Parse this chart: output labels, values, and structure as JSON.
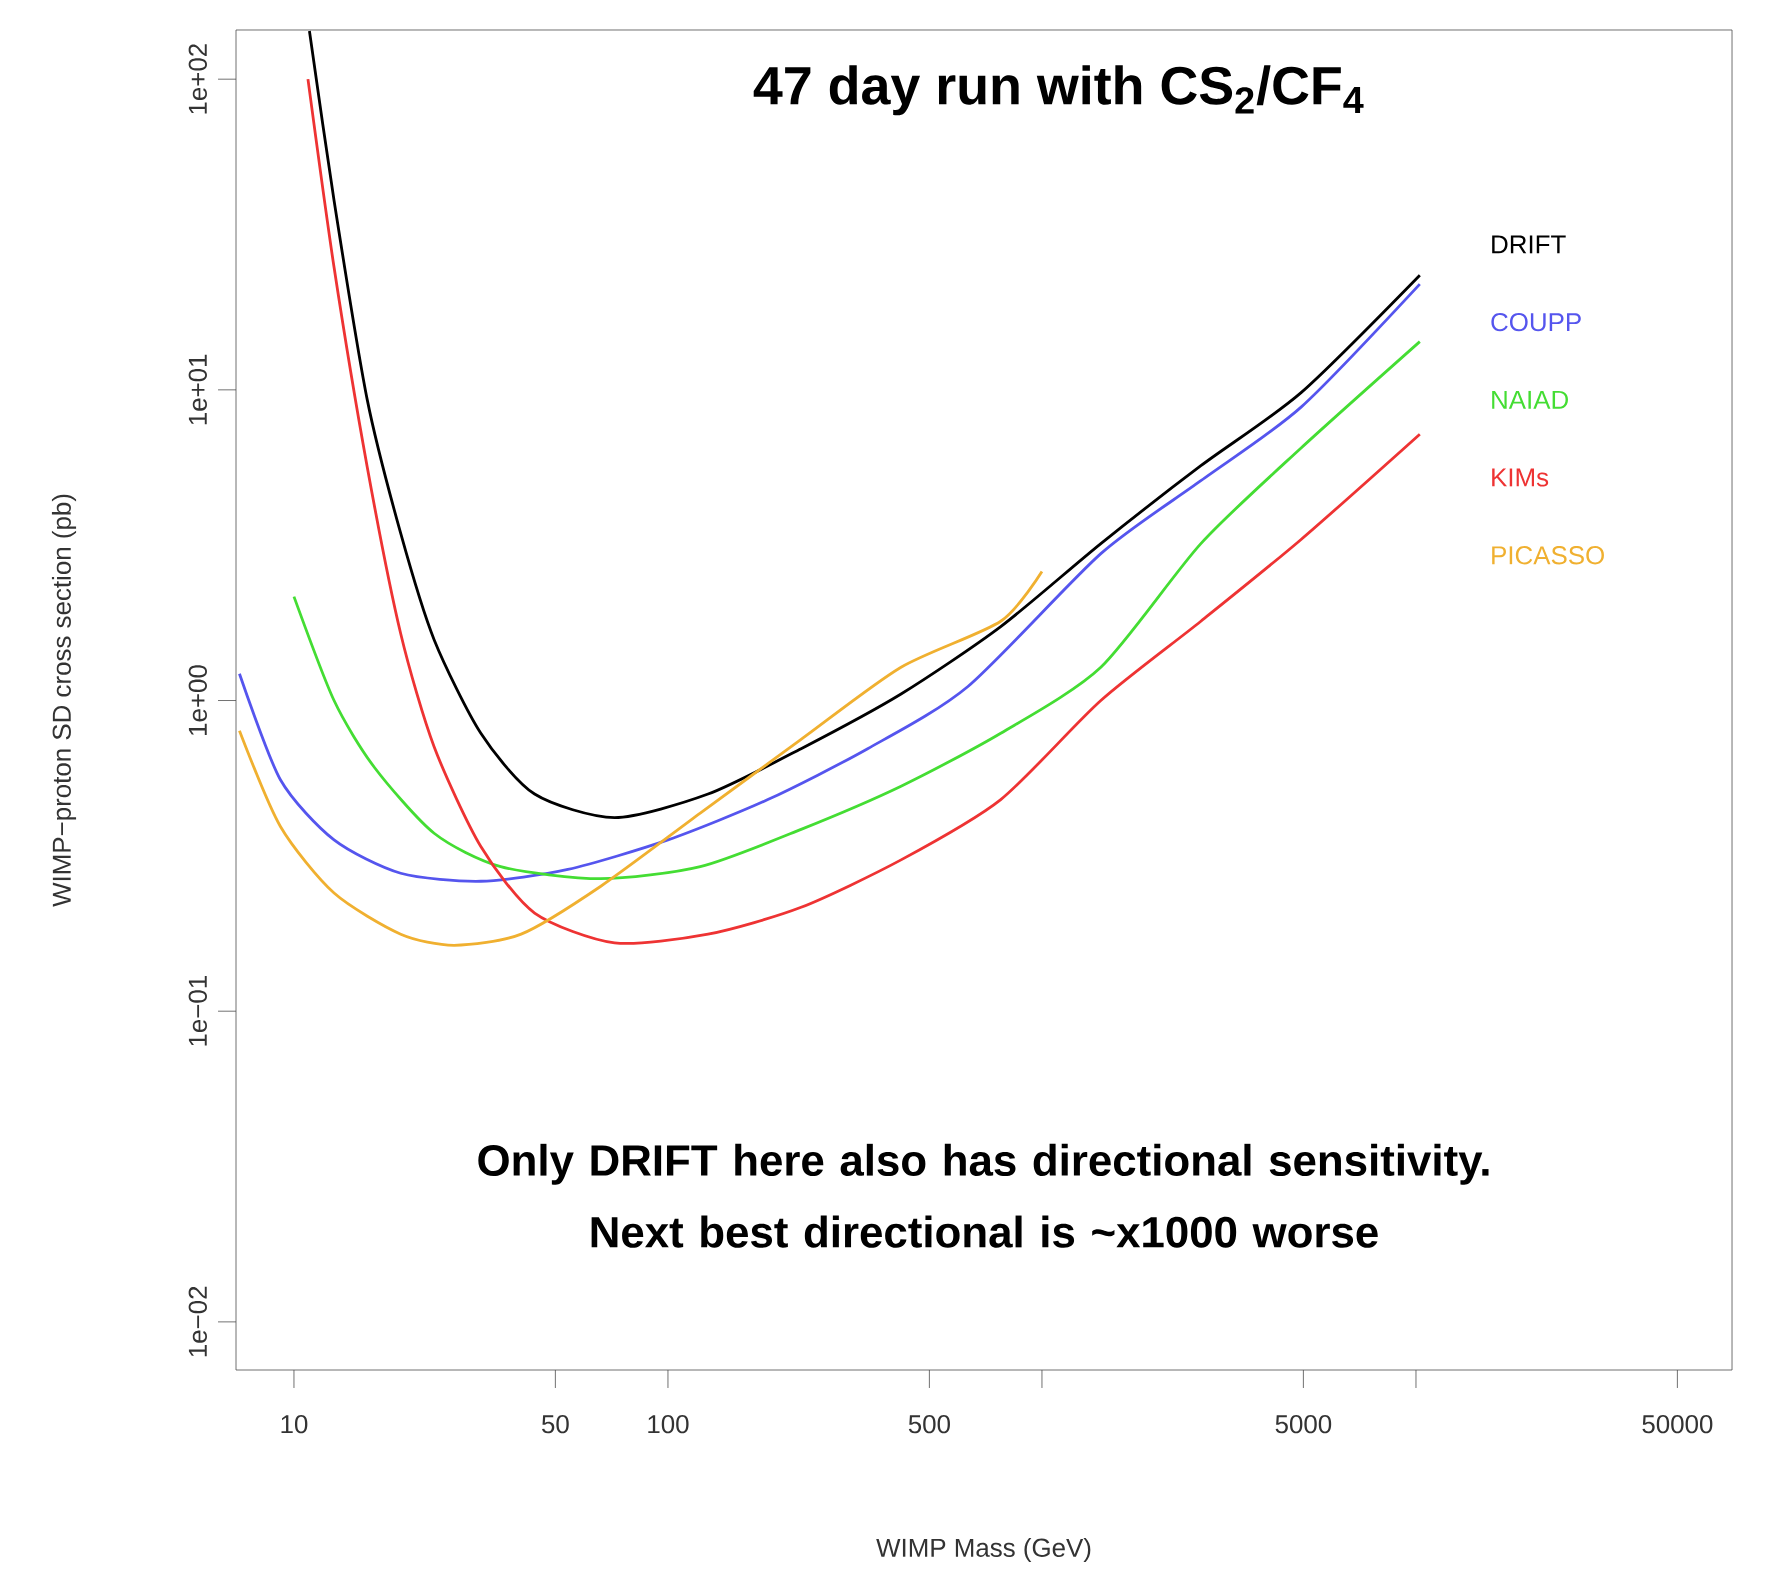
{
  "chart_data": {
    "type": "line",
    "title": "47 day run with CS$_{2}$/CF$_{4}$",
    "xlabel": "WIMP Mass (GeV)",
    "ylabel": "WIMP−proton SD cross section (pb)",
    "annotations": [
      "Only DRIFT here also has directional sensitivity. Next best directional is ~x1000 worse"
    ],
    "log": "xy",
    "legend": "right",
    "xlim": [
      7,
      70000
    ],
    "ylim": [
      0.007,
      144
    ],
    "xticks": [
      10,
      50,
      100,
      500,
      {
        "value": 1000,
        "label": null
      },
      5000,
      {
        "value": 10000,
        "label": null
      },
      50000
    ],
    "yticks": [
      {
        "value": 0.01,
        "label": "1e−02"
      },
      {
        "value": 0.1,
        "label": "1e−01"
      },
      {
        "value": 1,
        "label": "1e+00"
      },
      {
        "value": 10,
        "label": "1e+01"
      },
      {
        "value": 100,
        "label": "1e+02"
      }
    ],
    "series": [
      {
        "name": "DRIFT",
        "color": "#000000",
        "x": [
          11.0,
          12.8,
          15.7,
          19.3,
          23.7,
          31.6,
          44,
          72,
          128,
          227,
          420,
          776,
          1437,
          2660,
          4930,
          10240
        ],
        "values": [
          143,
          40.7,
          9.3,
          3.45,
          1.57,
          0.785,
          0.5,
          0.42,
          0.5,
          0.7,
          1.05,
          1.73,
          3.2,
          5.7,
          9.8,
          23.4
        ]
      },
      {
        "name": "COUPP",
        "color": "#5555ee",
        "x": [
          7.15,
          9.2,
          12.8,
          19.3,
          31.6,
          54,
          100,
          185,
          342,
          634,
          1437,
          2660,
          4930,
          10240
        ],
        "values": [
          1.22,
          0.556,
          0.356,
          0.278,
          0.262,
          0.286,
          0.356,
          0.48,
          0.7,
          1.11,
          2.97,
          5.1,
          8.8,
          21.9
        ]
      },
      {
        "name": "NAIAD",
        "color": "#44dd33",
        "x": [
          10.0,
          12.8,
          16.4,
          23.7,
          35.7,
          66,
          122,
          227,
          420,
          776,
          1437,
          2660,
          4930,
          10240
        ],
        "values": [
          2.16,
          1.0,
          0.61,
          0.374,
          0.292,
          0.267,
          0.292,
          0.385,
          0.53,
          0.785,
          1.28,
          3.2,
          6.5,
          14.3
        ]
      },
      {
        "name": "KIMs",
        "color": "#ee3333",
        "x": [
          10.9,
          12.8,
          15.7,
          19.3,
          23.7,
          31.6,
          44,
          72,
          128,
          227,
          420,
          776,
          1437,
          2660,
          4930,
          10240
        ],
        "values": [
          100,
          24.8,
          5.65,
          1.64,
          0.71,
          0.339,
          0.207,
          0.166,
          0.177,
          0.216,
          0.307,
          0.48,
          1.0,
          1.8,
          3.3,
          7.2
        ]
      },
      {
        "name": "PICASSO",
        "color": "#f0b030",
        "x": [
          7.15,
          9.2,
          12.8,
          19.3,
          26.8,
          40.5,
          66,
          122,
          227,
          420,
          776,
          1000
        ],
        "values": [
          0.8,
          0.393,
          0.24,
          0.177,
          0.163,
          0.177,
          0.252,
          0.434,
          0.75,
          1.28,
          1.8,
          2.6
        ]
      }
    ]
  }
}
